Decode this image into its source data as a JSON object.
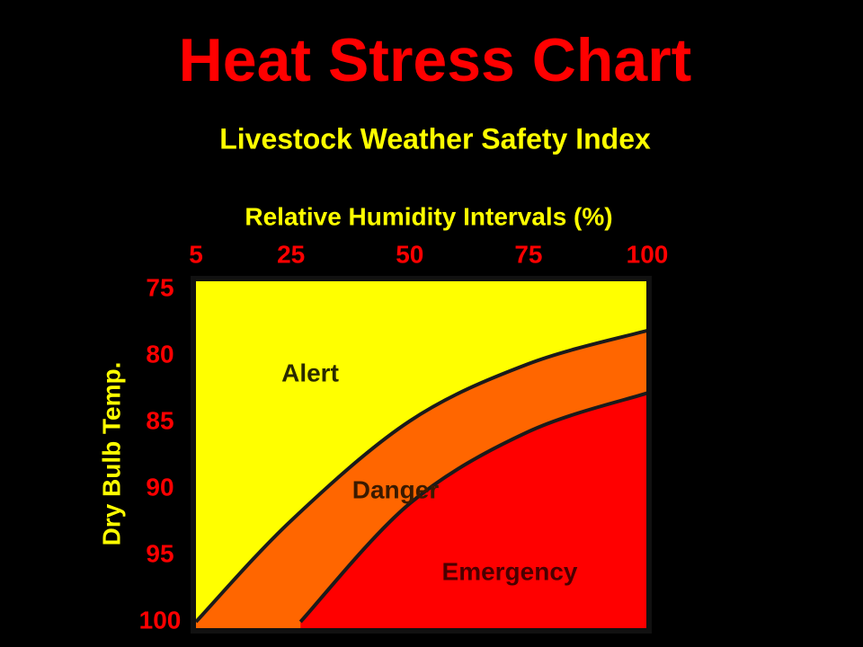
{
  "chart_data": {
    "type": "area",
    "title": "Heat Stress Chart",
    "subtitle": "Livestock Weather Safety Index",
    "x_label": "Relative Humidity Intervals (%)",
    "y_label": "Dry Bulb Temp.",
    "base_zone": {
      "name": "Alert",
      "color": "#ffff00"
    },
    "series": [
      {
        "name": "Danger",
        "color": "#ff6600",
        "x": [
          5,
          25,
          50,
          75,
          100
        ],
        "values": [
          100,
          92.4,
          84.9,
          80.6,
          78.1
        ]
      },
      {
        "name": "Emergency",
        "color": "#ff0000",
        "x": [
          27,
          50,
          75,
          100
        ],
        "values": [
          100,
          91.1,
          85.7,
          82.8
        ]
      }
    ],
    "xlim": [
      5,
      100
    ],
    "xticks": [
      5,
      25,
      50,
      75,
      100
    ],
    "ylim": [
      100,
      75
    ],
    "yticks": [
      75,
      80,
      85,
      90,
      95,
      100
    ],
    "grid": false
  }
}
